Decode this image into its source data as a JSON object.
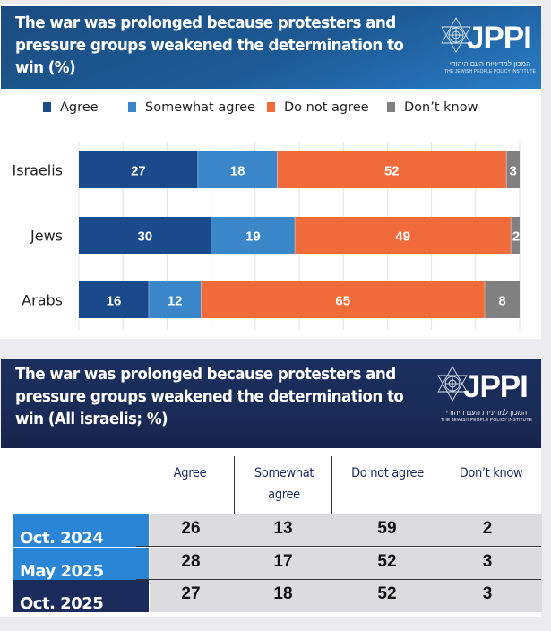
{
  "top_panel": {
    "title": "The war was prolonged because protesters and pressure groups weakened the determination to win (%)",
    "logo": {
      "name": "JPPI",
      "hebrew": "המכון למדיניות העם היהודי",
      "english": "THE JEWISH PEOPLE POLICY INSTITUTE"
    }
  },
  "bottom_panel": {
    "title": "The war was prolonged because protesters and pressure groups weakened the determination to win  (All israelis; %)",
    "logo": {
      "name": "JPPI",
      "hebrew": "המכון למדיניות העם היהודי",
      "english": "THE JEWISH PEOPLE POLICY INSTITUTE"
    }
  },
  "chart_data": [
    {
      "type": "bar",
      "orientation": "horizontal-stacked",
      "title": "The war was prolonged because protesters and pressure groups weakened the determination to win (%)",
      "categories": [
        "Israelis",
        "Jews",
        "Arabs"
      ],
      "series": [
        {
          "name": "Agree",
          "color": "#1b4a8c",
          "values": [
            27,
            30,
            16
          ]
        },
        {
          "name": "Somewhat agree",
          "color": "#3a86c8",
          "values": [
            18,
            19,
            12
          ]
        },
        {
          "name": "Do not agree",
          "color": "#f26b3a",
          "values": [
            52,
            49,
            65
          ]
        },
        {
          "name": "Don’t know",
          "color": "#808080",
          "values": [
            3,
            2,
            8
          ]
        }
      ],
      "xlim": [
        0,
        100
      ],
      "grid": true,
      "legend": "top"
    },
    {
      "type": "table",
      "title": "The war was prolonged because protesters and pressure groups weakened the determination to win  (All israelis; %)",
      "columns": [
        "Agree",
        "Somewhat agree",
        "Do not agree",
        "Don’t know"
      ],
      "rows": [
        {
          "label": "Oct. 2024",
          "color": "#2a85d6",
          "values": [
            "26",
            "13",
            "59",
            "2"
          ]
        },
        {
          "label": "May 2025",
          "color": "#2a85d6",
          "values": [
            "28",
            "17",
            "52",
            "3"
          ]
        },
        {
          "label": "Oct. 2025",
          "color": "#1a2b5c",
          "values": [
            "27",
            "18",
            "52",
            "3"
          ]
        }
      ]
    }
  ]
}
